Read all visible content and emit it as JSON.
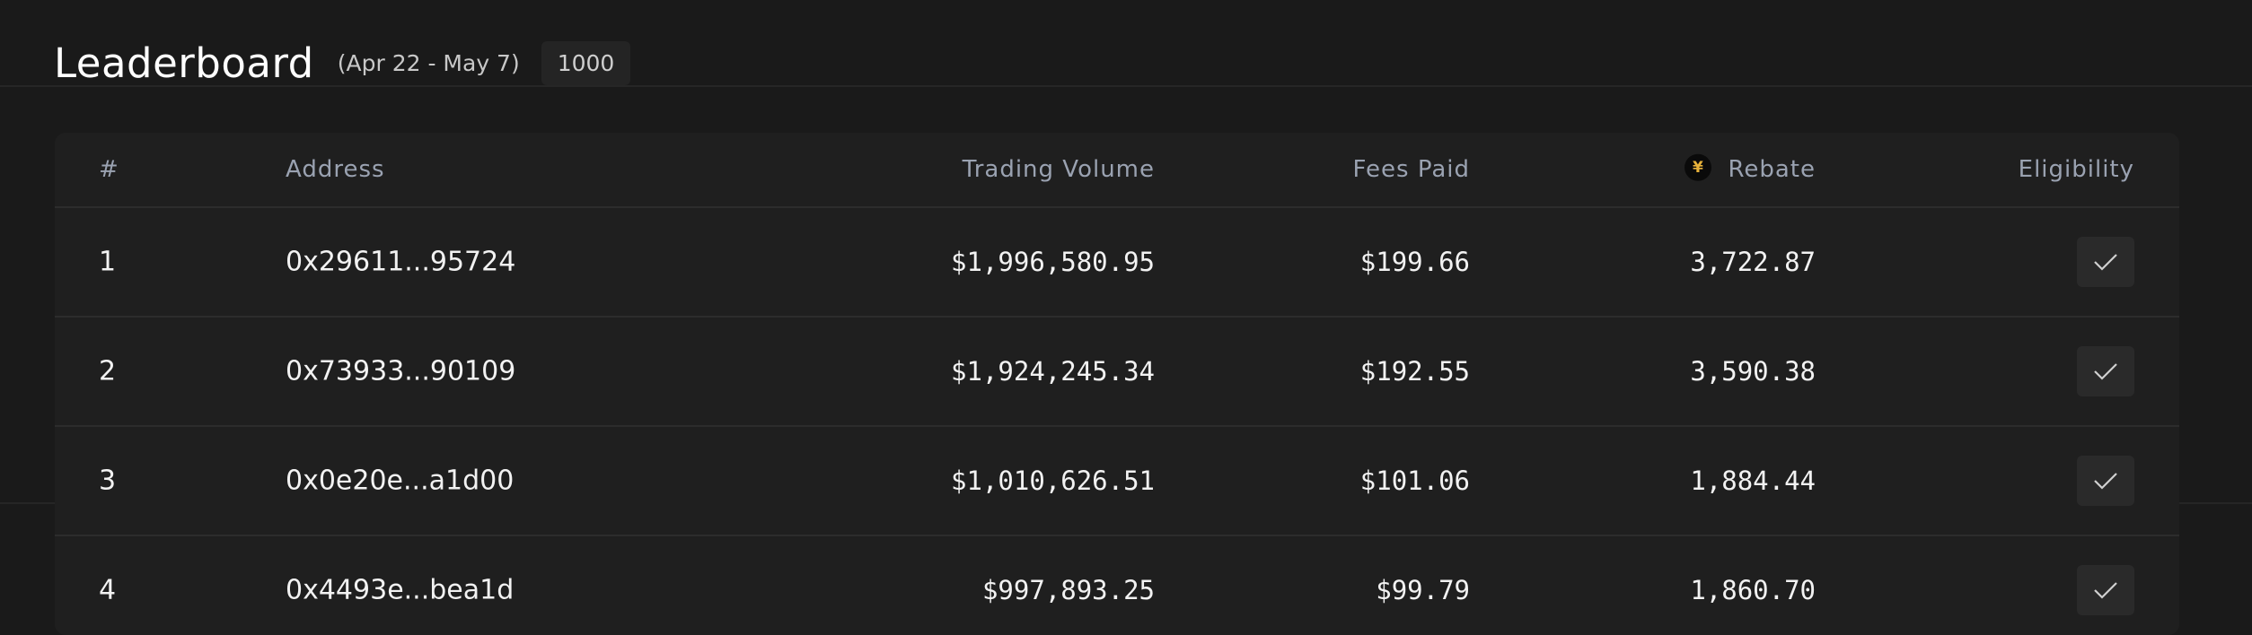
{
  "header": {
    "title": "Leaderboard",
    "date_range": "(Apr 22 - May 7)",
    "count": "1000"
  },
  "table": {
    "columns": {
      "rank": "#",
      "address": "Address",
      "volume": "Trading Volume",
      "fees": "Fees Paid",
      "rebate": "Rebate",
      "eligibility": "Eligibility"
    },
    "rebate_icon": "token-logo-icon",
    "accent_color": "#e8b23a",
    "rows": [
      {
        "rank": "1",
        "address": "0x29611...95724",
        "volume": "$1,996,580.95",
        "fees": "$199.66",
        "rebate": "3,722.87",
        "eligible": true
      },
      {
        "rank": "2",
        "address": "0x73933...90109",
        "volume": "$1,924,245.34",
        "fees": "$192.55",
        "rebate": "3,590.38",
        "eligible": true
      },
      {
        "rank": "3",
        "address": "0x0e20e...a1d00",
        "volume": "$1,010,626.51",
        "fees": "$101.06",
        "rebate": "1,884.44",
        "eligible": true
      },
      {
        "rank": "4",
        "address": "0x4493e...bea1d",
        "volume": "$997,893.25",
        "fees": "$99.79",
        "rebate": "1,860.70",
        "eligible": true
      }
    ]
  }
}
